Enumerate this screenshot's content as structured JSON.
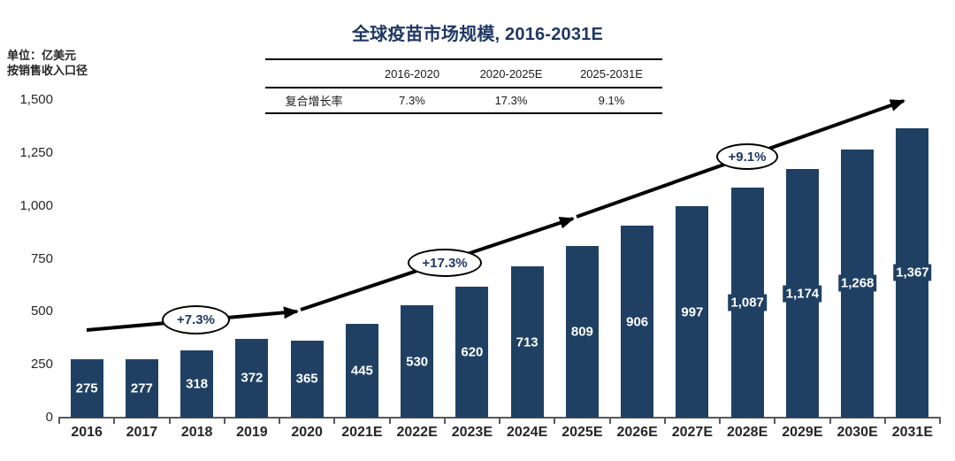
{
  "title": "全球疫苗市场规模, 2016-2031E",
  "unit_line1": "单位：亿美元",
  "unit_line2": "按销售收入口径",
  "cagr_table": {
    "columns": [
      "2016-2020",
      "2020-2025E",
      "2025-2031E"
    ],
    "row_label": "复合增长率",
    "values": [
      "7.3%",
      "17.3%",
      "9.1%"
    ]
  },
  "chart_data": {
    "type": "bar",
    "title": "全球疫苗市场规模, 2016-2031E",
    "xlabel": "",
    "ylabel": "单位：亿美元（按销售收入口径）",
    "categories": [
      "2016",
      "2017",
      "2018",
      "2019",
      "2020",
      "2021E",
      "2022E",
      "2023E",
      "2024E",
      "2025E",
      "2026E",
      "2027E",
      "2028E",
      "2029E",
      "2030E",
      "2031E"
    ],
    "values": [
      275,
      277,
      318,
      372,
      365,
      445,
      530,
      620,
      713,
      809,
      906,
      997,
      1087,
      1174,
      1268,
      1367
    ],
    "value_labels": [
      "275",
      "277",
      "318",
      "372",
      "365",
      "445",
      "530",
      "620",
      "713",
      "809",
      "906",
      "997",
      "1,087",
      "1,174",
      "1,268",
      "1,367"
    ],
    "ylim": [
      0,
      1500
    ],
    "y_tick_values": [
      0,
      250,
      500,
      750,
      1000,
      1250,
      1500
    ],
    "y_tick_labels": [
      "0",
      "250",
      "500",
      "750",
      "1,000",
      "1,250",
      "1,500"
    ],
    "grid": "off",
    "legend": "none",
    "bar_color": "#1F4063",
    "label_color": "#FFFFFF",
    "title_color": "#1F3864",
    "axis_color": "#595959",
    "annotations": [
      {
        "label": "+7.3%",
        "segment": "2016-2020"
      },
      {
        "label": "+17.3%",
        "segment": "2020-2025E"
      },
      {
        "label": "+9.1%",
        "segment": "2025-2031E"
      }
    ]
  }
}
